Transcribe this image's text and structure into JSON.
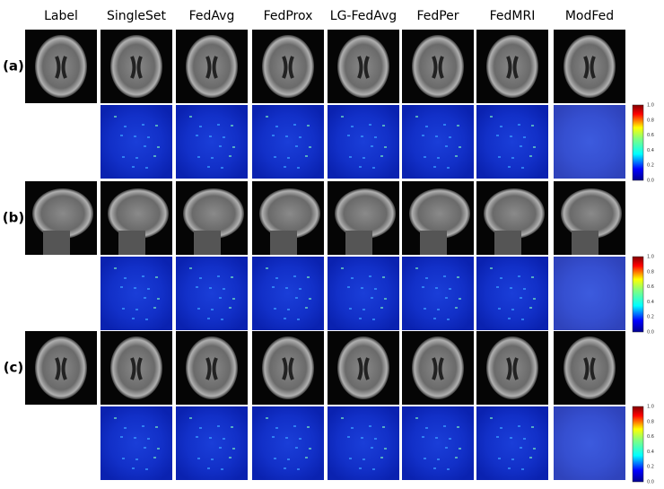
{
  "columns": [
    "Label",
    "SingleSet",
    "FedAvg",
    "FedProx",
    "LG-FedAvg",
    "FedPer",
    "FedMRI",
    "ModFed"
  ],
  "rows": [
    {
      "label": "(a)"
    },
    {
      "label": "(b)"
    },
    {
      "label": "(c)"
    }
  ],
  "colorbar": {
    "ticks": [
      "1.0",
      "0.8",
      "0.6",
      "0.4",
      "0.2",
      "0.0"
    ]
  }
}
